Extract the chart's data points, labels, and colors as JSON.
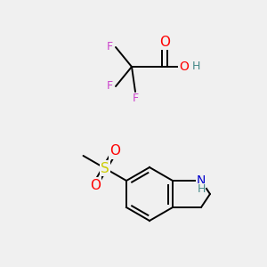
{
  "bg_color": "#f0f0f0",
  "colors": {
    "O": "#ff0000",
    "F": "#cc44cc",
    "N": "#0000cc",
    "S": "#cccc00",
    "H_on_O": "#448888",
    "H_on_N": "#448888",
    "C": "#000000",
    "bond": "#000000"
  },
  "font_size": 9,
  "line_width": 1.4
}
